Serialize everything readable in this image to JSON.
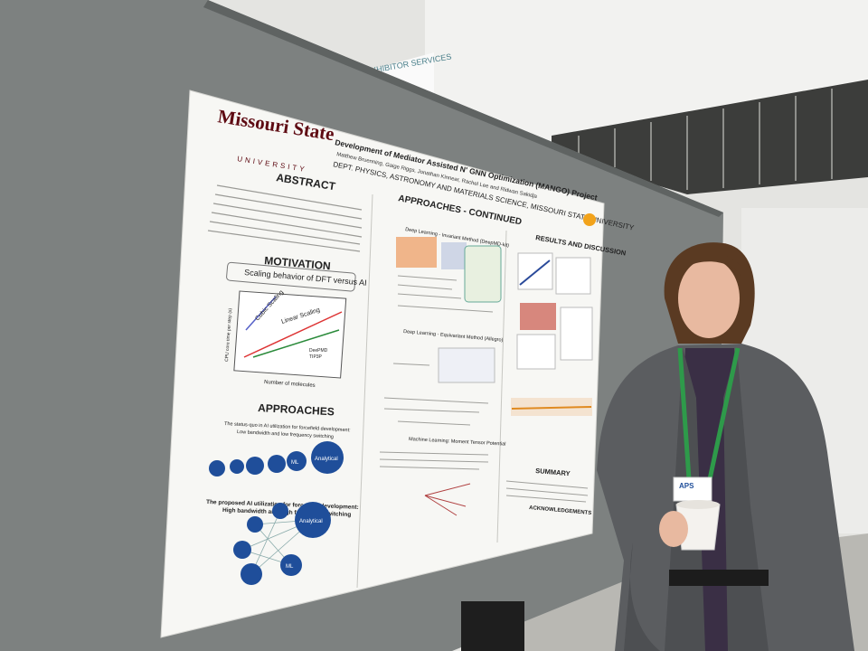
{
  "venue_sign": "EXHIBITOR SERVICES",
  "poster": {
    "logo": {
      "name": "Missouri State",
      "sub": "UNIVERSITY"
    },
    "title": "Development of Mediator Assisted N' GNN Optimization (MANGO) Project",
    "authors": "Matthew Bruenning, Gaige Riggs, Jonathan Kinnear, Rachel Lee and Ridwan Sakidja",
    "department": "DEPT. PHYSICS, ASTRONOMY AND MATERIALS SCIENCE, MISSOURI STATE UNIVERSITY",
    "sections": {
      "abstract": "ABSTRACT",
      "motivation": "MOTIVATION",
      "motivation_subtitle": "Scaling behavior of DFT versus AI",
      "approaches": "APPROACHES",
      "status_quo": "The status-quo in AI utilization for forcefield development:",
      "status_quo_detail": "Low bandwidth and low frequency switching",
      "proposed": "The proposed AI utilization for forcefield development:",
      "proposed_detail": "High bandwidth and high frequency switching",
      "approaches_continued": "APPROACHES - CONTINUED",
      "deepmd": "Deep Learning - Invariant Method (DeepMD-kit)",
      "allegro": "Deep Learning - Equivariant Method (Allegro)",
      "mtp": "Machine Learning: Moment Tensor Potential",
      "results": "RESULTS AND DISCUSSION",
      "summary": "SUMMARY",
      "acknowledgements": "ACKNOWLEDGEMENTS"
    },
    "plot": {
      "linear": "Linear Scaling",
      "cubic": "Cubic Scaling",
      "x_label": "Number of molecules",
      "y_label": "CPU core time per step (s)",
      "legend": [
        "DeePMD",
        "TIP3P"
      ]
    },
    "nodes": [
      "ML",
      "Analytical",
      "ML",
      "Analytical"
    ]
  },
  "badge": "APS"
}
